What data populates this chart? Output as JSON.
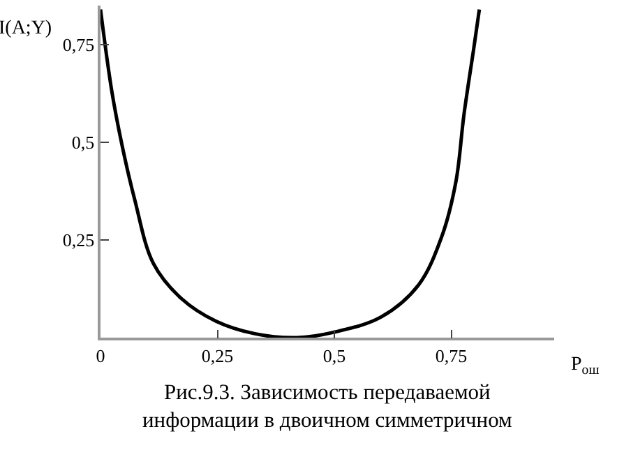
{
  "chart_data": {
    "type": "line",
    "ylabel": "I(A;Y)",
    "xlabel": "P$_{ош}$",
    "annotations": [
      "Рис.9.3. Зависимость передаваемой\nинформации в двоичном симметричном"
    ],
    "x": [
      0,
      0.024,
      0.046,
      0.073,
      0.113,
      0.173,
      0.247,
      0.33,
      0.42,
      0.5,
      0.6,
      0.68,
      0.73,
      0.76,
      0.777,
      0.798,
      0.81
    ],
    "series": [
      {
        "color": "#000000",
        "values": [
          0.84,
          0.632,
          0.493,
          0.354,
          0.19,
          0.1,
          0.042,
          0.01,
          0,
          0.014,
          0.053,
          0.135,
          0.26,
          0.4,
          0.57,
          0.74,
          0.84
        ]
      }
    ],
    "xlim": [
      0,
      0.97
    ],
    "ylim": [
      0,
      0.85
    ],
    "xticks": [
      {
        "value": 0,
        "label": "0"
      },
      {
        "value": 0.25,
        "label": "0,25"
      },
      {
        "value": 0.5,
        "label": "0,5"
      },
      {
        "value": 0.75,
        "label": "0,75"
      }
    ],
    "yticks": [
      {
        "value": 0.25,
        "label": "0,25"
      },
      {
        "value": 0.5,
        "label": "0,5"
      },
      {
        "value": 0.75,
        "label": "0,75"
      }
    ],
    "legend": false,
    "marker": "none",
    "line_style": "solid"
  }
}
